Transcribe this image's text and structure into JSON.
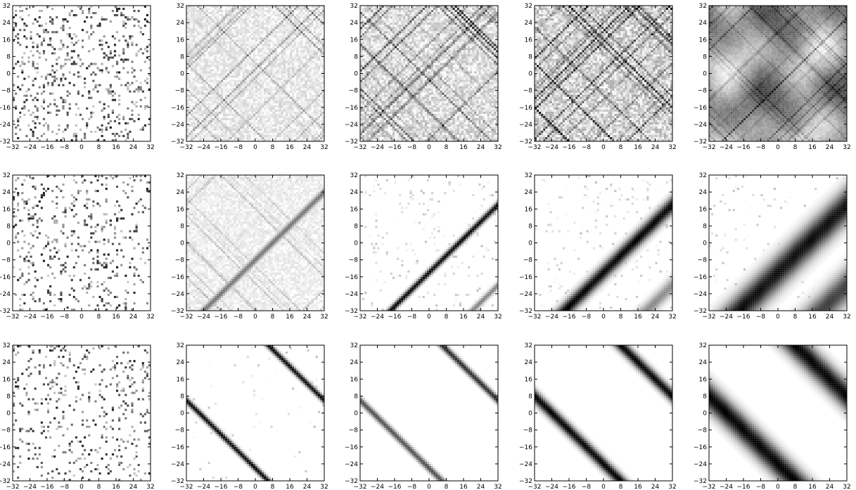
{
  "chart_data": {
    "type": "heatmap",
    "layout": "grid",
    "rows": 3,
    "cols": 5,
    "colormap": "gray_r",
    "xlim": [
      -32,
      32
    ],
    "ylim": [
      -32,
      32
    ],
    "xticks": [
      -32,
      -24,
      -16,
      -8,
      0,
      8,
      16,
      24,
      32
    ],
    "yticks": [
      -32,
      -24,
      -16,
      -8,
      0,
      8,
      16,
      24,
      32
    ],
    "xtick_labels": [
      "−32",
      "−24",
      "−16",
      "−8",
      "0",
      "8",
      "16",
      "24",
      "32"
    ],
    "ytick_labels": [
      "−32",
      "−24",
      "−16",
      "−8",
      "0",
      "8",
      "16",
      "24",
      "32"
    ],
    "grid": false,
    "panels": [
      {
        "row": 0,
        "col": 0,
        "pattern": "sparse_random",
        "density": 0.16,
        "bands": []
      },
      {
        "row": 0,
        "col": 1,
        "pattern": "diagonal_texture",
        "density": 0.5,
        "bands": []
      },
      {
        "row": 0,
        "col": 2,
        "pattern": "diagonal_texture",
        "density": 0.8,
        "bands": []
      },
      {
        "row": 0,
        "col": 3,
        "pattern": "dense_texture",
        "density": 1.0,
        "bands": []
      },
      {
        "row": 0,
        "col": 4,
        "pattern": "smooth_texture",
        "density": 1.0,
        "bands": []
      },
      {
        "row": 1,
        "col": 0,
        "pattern": "sparse_random",
        "density": 0.12,
        "bands": []
      },
      {
        "row": 1,
        "col": 1,
        "pattern": "diagonal_texture",
        "density": 0.35,
        "bands": [
          {
            "dir": "positive",
            "offset": -8,
            "width": 1.5,
            "strength": 0.55
          }
        ]
      },
      {
        "row": 1,
        "col": 2,
        "pattern": "bands",
        "density": 0.05,
        "bands": [
          {
            "dir": "positive",
            "offset": -14,
            "width": 1.3,
            "strength": 1.0
          },
          {
            "dir": "positive",
            "offset": -52,
            "width": 1.3,
            "strength": 0.5
          }
        ]
      },
      {
        "row": 1,
        "col": 3,
        "pattern": "bands",
        "density": 0.05,
        "bands": [
          {
            "dir": "positive",
            "offset": -14,
            "width": 3.0,
            "strength": 1.0
          },
          {
            "dir": "positive",
            "offset": -52,
            "width": 3.0,
            "strength": 0.45
          }
        ]
      },
      {
        "row": 1,
        "col": 4,
        "pattern": "bands",
        "density": 0.03,
        "bands": [
          {
            "dir": "positive",
            "offset": -14,
            "width": 6.0,
            "strength": 0.95
          },
          {
            "dir": "positive",
            "offset": -52,
            "width": 6.0,
            "strength": 0.75
          }
        ]
      },
      {
        "row": 2,
        "col": 0,
        "pattern": "sparse_random",
        "density": 0.1,
        "bands": []
      },
      {
        "row": 2,
        "col": 1,
        "pattern": "bands",
        "density": 0.02,
        "bands": [
          {
            "dir": "negative",
            "offset": 38,
            "width": 1.2,
            "strength": 1.0
          },
          {
            "dir": "negative",
            "offset": -26,
            "width": 1.2,
            "strength": 1.0
          }
        ]
      },
      {
        "row": 2,
        "col": 2,
        "pattern": "bands",
        "density": 0.0,
        "bands": [
          {
            "dir": "negative",
            "offset": 38,
            "width": 1.4,
            "strength": 0.85
          },
          {
            "dir": "negative",
            "offset": -26,
            "width": 1.4,
            "strength": 0.7
          }
        ]
      },
      {
        "row": 2,
        "col": 3,
        "pattern": "bands",
        "density": 0.0,
        "bands": [
          {
            "dir": "negative",
            "offset": 40,
            "width": 2.4,
            "strength": 1.0
          },
          {
            "dir": "negative",
            "offset": -24,
            "width": 2.4,
            "strength": 1.0
          }
        ]
      },
      {
        "row": 2,
        "col": 4,
        "pattern": "bands",
        "density": 0.0,
        "bands": [
          {
            "dir": "negative",
            "offset": 40,
            "width": 5.0,
            "strength": 1.0
          },
          {
            "dir": "negative",
            "offset": -24,
            "width": 5.0,
            "strength": 1.0
          }
        ]
      }
    ]
  }
}
